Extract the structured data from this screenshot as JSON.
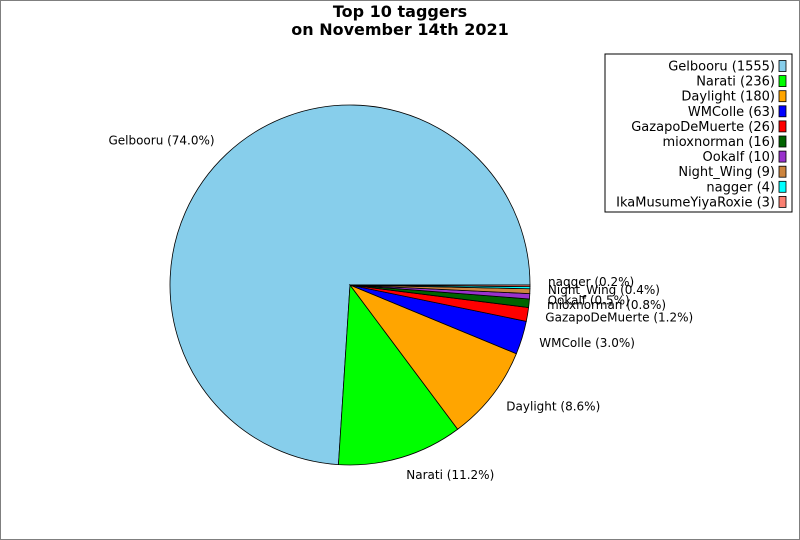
{
  "chart_data": {
    "type": "pie",
    "title": "Top 10 taggers\non November 14th 2021",
    "title_lines": [
      "Top 10 taggers",
      "on November 14th 2021"
    ],
    "legend_position": "top-right",
    "slices": [
      {
        "name": "Gelbooru",
        "count": 1555,
        "percent": 74.0,
        "color": "#87ceeb",
        "label": "Gelbooru (74.0%)",
        "legend": "Gelbooru (1555)"
      },
      {
        "name": "Narati",
        "count": 236,
        "percent": 11.2,
        "color": "#00ff00",
        "label": "Narati (11.2%)",
        "legend": "Narati (236)"
      },
      {
        "name": "Daylight",
        "count": 180,
        "percent": 8.6,
        "color": "#ffa500",
        "label": "Daylight (8.6%)",
        "legend": "Daylight (180)"
      },
      {
        "name": "WMColle",
        "count": 63,
        "percent": 3.0,
        "color": "#0000ff",
        "label": "WMColle (3.0%)",
        "legend": "WMColle (63)"
      },
      {
        "name": "GazapoDeMuerte",
        "count": 26,
        "percent": 1.2,
        "color": "#ff0000",
        "label": "GazapoDeMuerte (1.2%)",
        "legend": "GazapoDeMuerte (26)"
      },
      {
        "name": "mioxnorman",
        "count": 16,
        "percent": 0.8,
        "color": "#006400",
        "label": "mioxnorman (0.8%)",
        "legend": "mioxnorman (16)"
      },
      {
        "name": "Ookalf",
        "count": 10,
        "percent": 0.5,
        "color": "#9932cc",
        "label": "Ookalf (0.5%)",
        "legend": "Ookalf (10)"
      },
      {
        "name": "Night_Wing",
        "count": 9,
        "percent": 0.4,
        "color": "#cd853f",
        "label": "Night_Wing (0.4%)",
        "legend": "Night_Wing (9)"
      },
      {
        "name": "nagger",
        "count": 4,
        "percent": 0.2,
        "color": "#00ffff",
        "label": "nagger (0.2%)",
        "legend": "nagger (4)"
      },
      {
        "name": "IkaMusumeYiyaRoxie",
        "count": 3,
        "percent": 0.1,
        "color": "#fa8072",
        "legend": "IkaMusumeYiyaRoxie (3)"
      }
    ]
  }
}
